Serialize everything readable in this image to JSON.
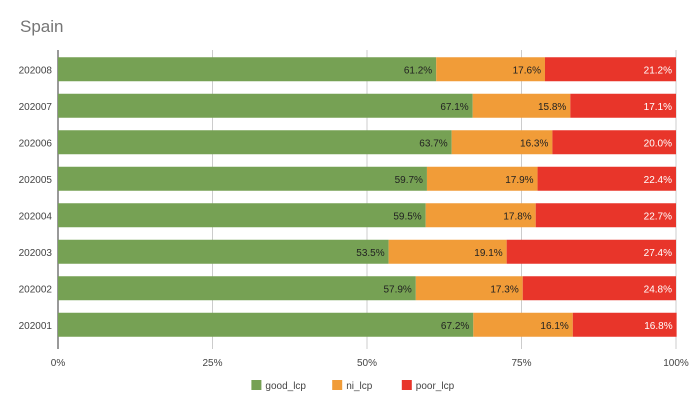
{
  "chart_data": {
    "type": "bar",
    "orientation": "horizontal",
    "stacked": "percent",
    "title": "Spain",
    "categories": [
      "202008",
      "202007",
      "202006",
      "202005",
      "202004",
      "202003",
      "202002",
      "202001"
    ],
    "series": [
      {
        "name": "good_lcp",
        "color": "#76a154",
        "label_color": "#222222",
        "values": [
          61.2,
          67.1,
          63.7,
          59.7,
          59.5,
          53.5,
          57.9,
          67.2
        ],
        "labels": [
          "61.2%",
          "67.1%",
          "63.7%",
          "59.7%",
          "59.5%",
          "53.5%",
          "57.9%",
          "67.2%"
        ]
      },
      {
        "name": "ni_lcp",
        "color": "#f19c38",
        "label_color": "#222222",
        "values": [
          17.6,
          15.8,
          16.3,
          17.9,
          17.8,
          19.1,
          17.3,
          16.1
        ],
        "labels": [
          "17.6%",
          "15.8%",
          "16.3%",
          "17.9%",
          "17.8%",
          "19.1%",
          "17.3%",
          "16.1%"
        ]
      },
      {
        "name": "poor_lcp",
        "color": "#e8352a",
        "label_color": "#ffffff",
        "values": [
          21.2,
          17.1,
          20.0,
          22.4,
          22.7,
          27.4,
          24.8,
          16.8
        ],
        "labels": [
          "21.2%",
          "17.1%",
          "20.0%",
          "22.4%",
          "22.7%",
          "27.4%",
          "24.8%",
          "16.8%"
        ]
      }
    ],
    "xlim": [
      0,
      100
    ],
    "xticks": [
      "0%",
      "25%",
      "50%",
      "75%",
      "100%"
    ],
    "xlabel": "",
    "ylabel": "",
    "grid": true,
    "legend_position": "bottom-center"
  }
}
